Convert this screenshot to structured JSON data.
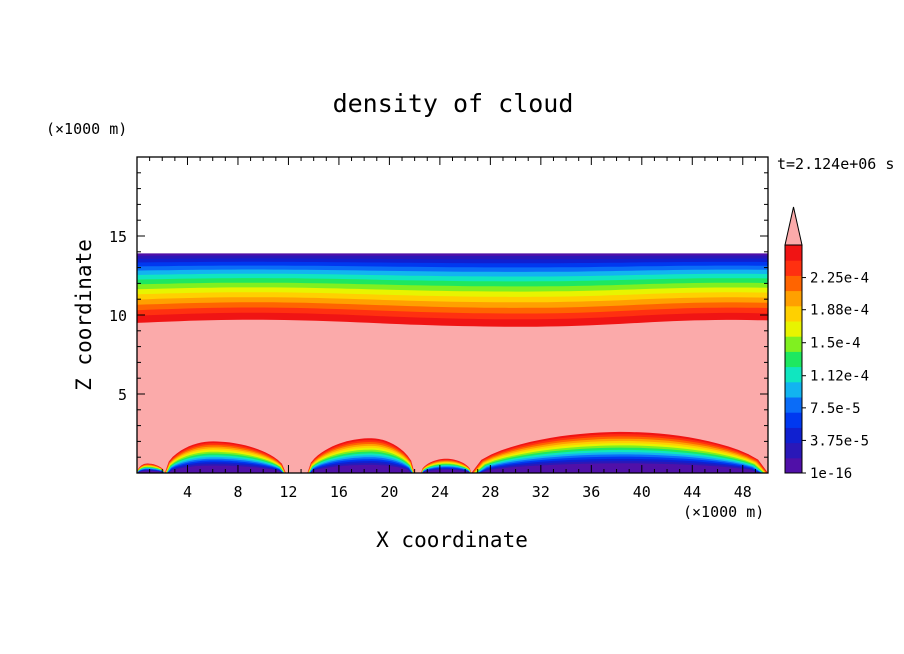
{
  "chart_data": {
    "type": "heatmap",
    "title": "density of cloud",
    "xlabel": "X coordinate",
    "ylabel": "Z coordinate",
    "x_unit_label": "(×1000 m)",
    "y_unit_label": "(×1000 m)",
    "time_label": "t=2.124e+06 s",
    "xlim": [
      0,
      50
    ],
    "ylim": [
      0,
      20
    ],
    "x_ticks": [
      4,
      8,
      12,
      16,
      20,
      24,
      28,
      32,
      36,
      40,
      44,
      48
    ],
    "y_ticks": [
      5,
      10,
      15
    ],
    "cloud_top_km": 13.9,
    "saturation_top_km": 9.6,
    "colorbar": {
      "colors": [
        "#5010a8",
        "#2a18b8",
        "#1020d0",
        "#0038f0",
        "#0a6cf8",
        "#12b4f0",
        "#10e6c0",
        "#1ee860",
        "#80f020",
        "#e8f400",
        "#ffd000",
        "#ffa000",
        "#ff6400",
        "#ff3010",
        "#f01414"
      ],
      "extend_color": "#fbaaaa",
      "labels": [
        {
          "value": 0.000225,
          "text": "2.25e-4"
        },
        {
          "value": 0.000188,
          "text": "1.88e-4"
        },
        {
          "value": 0.00015,
          "text": "1.5e-4"
        },
        {
          "value": 0.000112,
          "text": "1.12e-4"
        },
        {
          "value": 7.5e-05,
          "text": "7.5e-5"
        },
        {
          "value": 3.75e-05,
          "text": "3.75e-5"
        },
        {
          "value": 1e-16,
          "text": "1e-16"
        }
      ],
      "max_value": 0.0002625
    },
    "bottom_features": [
      {
        "x_start": 0.0,
        "x_end": 2.2,
        "x_peak": 0.8,
        "height": 0.6
      },
      {
        "x_start": 2.2,
        "x_end": 11.8,
        "x_peak": 6.0,
        "height": 2.0
      },
      {
        "x_start": 13.5,
        "x_end": 22.0,
        "x_peak": 18.5,
        "height": 2.2
      },
      {
        "x_start": 22.5,
        "x_end": 26.5,
        "x_peak": 24.5,
        "height": 0.9
      },
      {
        "x_start": 26.5,
        "x_end": 50.0,
        "x_peak": 38.5,
        "height": 2.6
      }
    ]
  }
}
